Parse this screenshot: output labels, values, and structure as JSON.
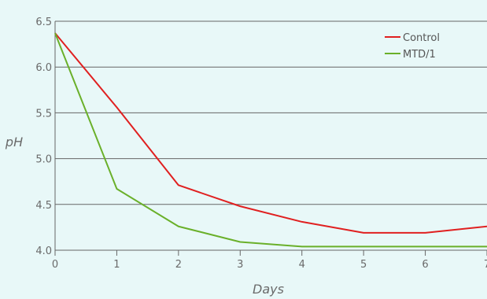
{
  "chart_data": {
    "type": "line",
    "xlabel": "Days",
    "ylabel": "pH",
    "x": [
      0,
      1,
      2,
      3,
      4,
      5,
      6,
      7
    ],
    "xlim": [
      0,
      7
    ],
    "ylim": [
      4.0,
      6.5
    ],
    "x_ticks": [
      "0",
      "1",
      "2",
      "3",
      "4",
      "5",
      "6",
      "7"
    ],
    "y_ticks": [
      "4.0",
      "4.5",
      "5.0",
      "5.5",
      "6.0",
      "6.5"
    ],
    "grid": "horizontal",
    "legend_position": "top-right",
    "series": [
      {
        "name": "Control",
        "color": "#e02020",
        "values": [
          6.37,
          5.56,
          4.71,
          4.48,
          4.31,
          4.19,
          4.19,
          4.26
        ]
      },
      {
        "name": "MTD/1",
        "color": "#6ab02a",
        "values": [
          6.37,
          4.67,
          4.26,
          4.09,
          4.04,
          4.04,
          4.04,
          4.04
        ]
      }
    ]
  },
  "colors": {
    "background": "#e8f8f8",
    "gridline": "#666666",
    "text": "#6a6a6a"
  }
}
